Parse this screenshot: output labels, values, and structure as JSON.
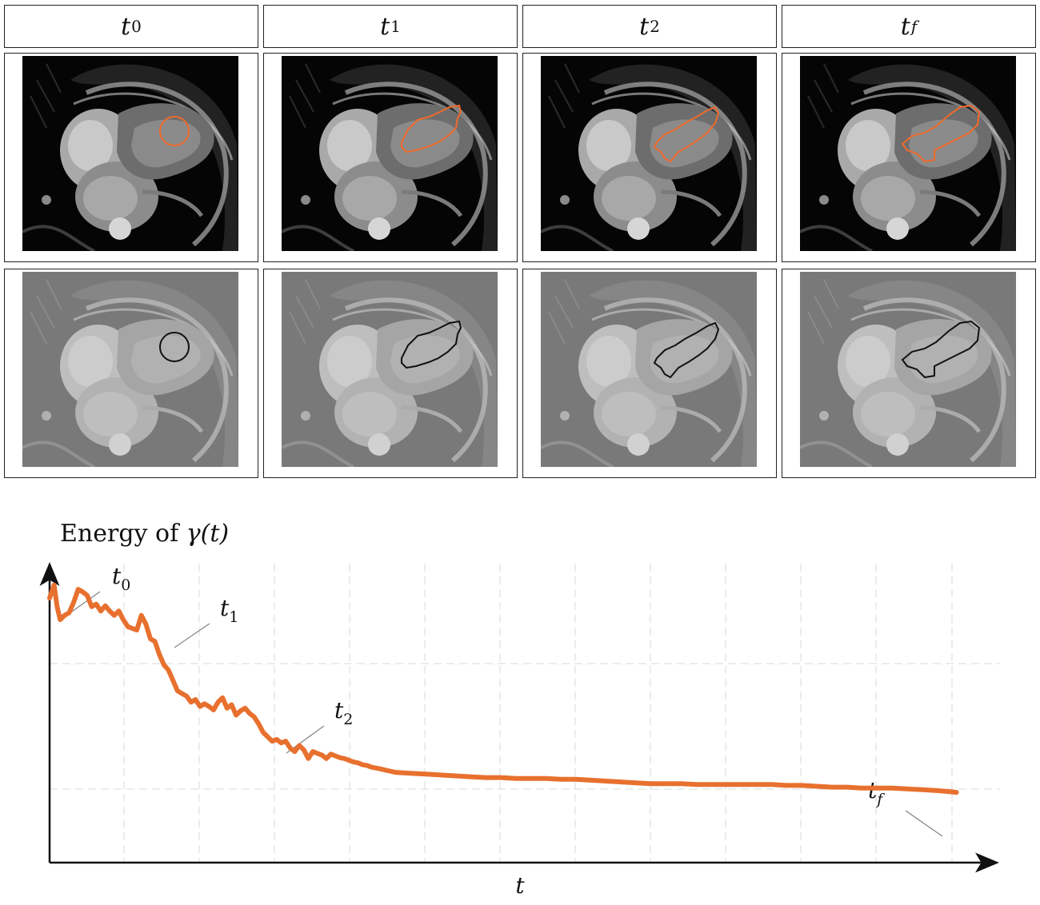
{
  "columns": [
    {
      "name": "t",
      "sub": "0",
      "sub_italic": false
    },
    {
      "name": "t",
      "sub": "1",
      "sub_italic": false
    },
    {
      "name": "t",
      "sub": "2",
      "sub_italic": false
    },
    {
      "name": "t",
      "sub": "f",
      "sub_italic": true
    }
  ],
  "rows": [
    "mri-with-contour",
    "faded-mri-with-contour"
  ],
  "colors": {
    "contour_top": "#ef6a2b",
    "contour_bottom": "#111111",
    "curve": "#e8702e",
    "grid": "#d9d9d9"
  },
  "chart_data": {
    "type": "line",
    "title_prefix": "Energy of ",
    "title_var": "γ(t)",
    "xlabel": "t",
    "ylabel": "",
    "grid": true,
    "xlim": [
      0,
      600
    ],
    "ylim": [
      0,
      340
    ],
    "series": [
      {
        "x": [
          0,
          3,
          5,
          7,
          10,
          13,
          16,
          19,
          22,
          25,
          28,
          31,
          34,
          37,
          40,
          43,
          46,
          49,
          52,
          55,
          58,
          61,
          64,
          67,
          70,
          73,
          76,
          79,
          82,
          85,
          88,
          91,
          94,
          97,
          100,
          103,
          106,
          109,
          112,
          115,
          118,
          121,
          124,
          127,
          130,
          133,
          136,
          139,
          142,
          145,
          148,
          151,
          154,
          157,
          160,
          163,
          166,
          169,
          172,
          175,
          178,
          181,
          184,
          187,
          190,
          193,
          196,
          199,
          202,
          205,
          208,
          211,
          214,
          217,
          220,
          225,
          230,
          240,
          250,
          260,
          270,
          280,
          290,
          300,
          310,
          320,
          330,
          340,
          350,
          360,
          370,
          380,
          390,
          400,
          410,
          420,
          430,
          440,
          450,
          460,
          470,
          480,
          490,
          500,
          510,
          520,
          530,
          540,
          550,
          560,
          570,
          580,
          590,
          597,
          603
        ],
        "values": [
          305,
          320,
          295,
          280,
          285,
          288,
          300,
          315,
          312,
          308,
          295,
          298,
          290,
          296,
          290,
          285,
          290,
          280,
          272,
          270,
          268,
          285,
          275,
          258,
          255,
          240,
          228,
          222,
          210,
          198,
          195,
          192,
          185,
          188,
          180,
          183,
          180,
          176,
          185,
          190,
          178,
          182,
          170,
          175,
          178,
          172,
          168,
          160,
          150,
          145,
          140,
          142,
          138,
          140,
          132,
          128,
          135,
          130,
          120,
          128,
          126,
          124,
          120,
          125,
          123,
          121,
          120,
          118,
          116,
          115,
          113,
          112,
          110,
          109,
          108,
          106,
          104,
          103,
          102,
          101,
          100,
          99,
          98,
          98,
          97,
          97,
          97,
          96,
          96,
          95,
          94,
          93,
          92,
          91,
          91,
          91,
          90,
          90,
          90,
          90,
          90,
          90,
          89,
          89,
          88,
          87,
          87,
          86,
          86,
          86,
          85,
          84,
          83,
          82,
          81
        ]
      }
    ],
    "labels": [
      {
        "name": "t",
        "sub": "0",
        "sub_italic": false
      },
      {
        "name": "t",
        "sub": "1",
        "sub_italic": false
      },
      {
        "name": "t",
        "sub": "2",
        "sub_italic": false
      },
      {
        "name": "t",
        "sub": "f",
        "sub_italic": true
      }
    ]
  }
}
